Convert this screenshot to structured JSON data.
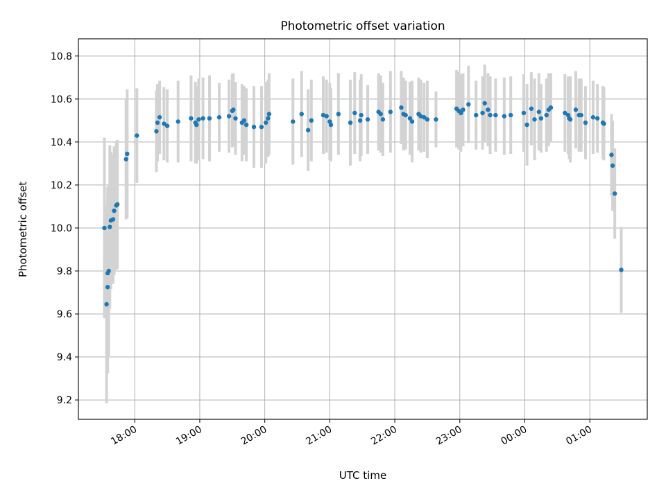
{
  "chart_data": {
    "type": "scatter",
    "title": "Photometric offset variation",
    "xlabel": "UTC time",
    "ylabel": "Photometric offset",
    "x_axis": {
      "kind": "time",
      "start": "17:00",
      "end": "02:00",
      "ticks": [
        "18:00",
        "19:00",
        "20:00",
        "21:00",
        "22:00",
        "23:00",
        "00:00",
        "01:00"
      ],
      "xlim": [
        "17:08",
        "01:53"
      ]
    },
    "ylim": [
      9.11,
      10.88
    ],
    "yticks": [
      9.2,
      9.4,
      9.6,
      9.8,
      10.0,
      10.2,
      10.4,
      10.6,
      10.8
    ],
    "grid": true,
    "colors": {
      "points": "#1f77b4",
      "errorbars": "#d3d3d3",
      "grid": "#b0b0b0"
    },
    "series": [
      {
        "marker": "dot",
        "error_bars": true,
        "points": [
          {
            "t": "17:32",
            "y": 10.0,
            "err": 0.42
          },
          {
            "t": "17:34",
            "y": 9.645,
            "err": 0.46
          },
          {
            "t": "17:35",
            "y": 9.725,
            "err": 0.4
          },
          {
            "t": "17:35",
            "y": 9.79,
            "err": 0.4
          },
          {
            "t": "17:36",
            "y": 9.8,
            "err": 0.4
          },
          {
            "t": "17:37",
            "y": 10.005,
            "err": 0.38
          },
          {
            "t": "17:38",
            "y": 10.035,
            "err": 0.32
          },
          {
            "t": "17:40",
            "y": 10.04,
            "err": 0.3
          },
          {
            "t": "17:41",
            "y": 10.08,
            "err": 0.3
          },
          {
            "t": "17:43",
            "y": 10.105,
            "err": 0.3
          },
          {
            "t": "17:44",
            "y": 10.11,
            "err": 0.3
          },
          {
            "t": "17:52",
            "y": 10.32,
            "err": 0.28
          },
          {
            "t": "17:53",
            "y": 10.345,
            "err": 0.3
          },
          {
            "t": "18:02",
            "y": 10.43,
            "err": 0.22
          },
          {
            "t": "18:20",
            "y": 10.45,
            "err": 0.19
          },
          {
            "t": "18:21",
            "y": 10.49,
            "err": 0.18
          },
          {
            "t": "18:23",
            "y": 10.515,
            "err": 0.17
          },
          {
            "t": "18:27",
            "y": 10.485,
            "err": 0.17
          },
          {
            "t": "18:30",
            "y": 10.475,
            "err": 0.17
          },
          {
            "t": "18:40",
            "y": 10.495,
            "err": 0.19
          },
          {
            "t": "18:52",
            "y": 10.51,
            "err": 0.2
          },
          {
            "t": "18:56",
            "y": 10.49,
            "err": 0.19
          },
          {
            "t": "18:57",
            "y": 10.48,
            "err": 0.18
          },
          {
            "t": "18:59",
            "y": 10.505,
            "err": 0.19
          },
          {
            "t": "19:03",
            "y": 10.51,
            "err": 0.19
          },
          {
            "t": "19:09",
            "y": 10.51,
            "err": 0.2
          },
          {
            "t": "19:18",
            "y": 10.515,
            "err": 0.16
          },
          {
            "t": "19:27",
            "y": 10.52,
            "err": 0.17
          },
          {
            "t": "19:30",
            "y": 10.545,
            "err": 0.17
          },
          {
            "t": "19:31",
            "y": 10.55,
            "err": 0.17
          },
          {
            "t": "19:33",
            "y": 10.51,
            "err": 0.17
          },
          {
            "t": "19:39",
            "y": 10.49,
            "err": 0.18
          },
          {
            "t": "19:41",
            "y": 10.5,
            "err": 0.16
          },
          {
            "t": "19:43",
            "y": 10.48,
            "err": 0.17
          },
          {
            "t": "19:50",
            "y": 10.47,
            "err": 0.19
          },
          {
            "t": "19:57",
            "y": 10.47,
            "err": 0.19
          },
          {
            "t": "20:01",
            "y": 10.49,
            "err": 0.19
          },
          {
            "t": "20:03",
            "y": 10.51,
            "err": 0.18
          },
          {
            "t": "20:04",
            "y": 10.53,
            "err": 0.19
          },
          {
            "t": "20:26",
            "y": 10.495,
            "err": 0.2
          },
          {
            "t": "20:34",
            "y": 10.53,
            "err": 0.2
          },
          {
            "t": "20:40",
            "y": 10.455,
            "err": 0.19
          },
          {
            "t": "20:43",
            "y": 10.5,
            "err": 0.19
          },
          {
            "t": "20:54",
            "y": 10.525,
            "err": 0.18
          },
          {
            "t": "20:57",
            "y": 10.52,
            "err": 0.17
          },
          {
            "t": "21:00",
            "y": 10.495,
            "err": 0.18
          },
          {
            "t": "21:01",
            "y": 10.48,
            "err": 0.17
          },
          {
            "t": "21:08",
            "y": 10.53,
            "err": 0.19
          },
          {
            "t": "21:19",
            "y": 10.49,
            "err": 0.2
          },
          {
            "t": "21:23",
            "y": 10.535,
            "err": 0.19
          },
          {
            "t": "21:28",
            "y": 10.5,
            "err": 0.19
          },
          {
            "t": "21:29",
            "y": 10.525,
            "err": 0.19
          },
          {
            "t": "21:35",
            "y": 10.505,
            "err": 0.16
          },
          {
            "t": "21:45",
            "y": 10.54,
            "err": 0.18
          },
          {
            "t": "21:47",
            "y": 10.53,
            "err": 0.18
          },
          {
            "t": "21:49",
            "y": 10.505,
            "err": 0.17
          },
          {
            "t": "21:56",
            "y": 10.54,
            "err": 0.19
          },
          {
            "t": "22:06",
            "y": 10.56,
            "err": 0.17
          },
          {
            "t": "22:08",
            "y": 10.53,
            "err": 0.17
          },
          {
            "t": "22:10",
            "y": 10.525,
            "err": 0.16
          },
          {
            "t": "22:14",
            "y": 10.51,
            "err": 0.17
          },
          {
            "t": "22:16",
            "y": 10.495,
            "err": 0.19
          },
          {
            "t": "22:22",
            "y": 10.53,
            "err": 0.17
          },
          {
            "t": "22:24",
            "y": 10.52,
            "err": 0.17
          },
          {
            "t": "22:27",
            "y": 10.515,
            "err": 0.16
          },
          {
            "t": "22:30",
            "y": 10.505,
            "err": 0.18
          },
          {
            "t": "22:38",
            "y": 10.505,
            "err": 0.13
          },
          {
            "t": "22:57",
            "y": 10.555,
            "err": 0.18
          },
          {
            "t": "22:59",
            "y": 10.545,
            "err": 0.18
          },
          {
            "t": "23:01",
            "y": 10.535,
            "err": 0.18
          },
          {
            "t": "23:03",
            "y": 10.55,
            "err": 0.17
          },
          {
            "t": "23:08",
            "y": 10.575,
            "err": 0.18
          },
          {
            "t": "23:15",
            "y": 10.525,
            "err": 0.16
          },
          {
            "t": "23:21",
            "y": 10.535,
            "err": 0.17
          },
          {
            "t": "23:23",
            "y": 10.58,
            "err": 0.18
          },
          {
            "t": "23:26",
            "y": 10.55,
            "err": 0.17
          },
          {
            "t": "23:28",
            "y": 10.525,
            "err": 0.18
          },
          {
            "t": "23:33",
            "y": 10.525,
            "err": 0.17
          },
          {
            "t": "23:41",
            "y": 10.52,
            "err": 0.18
          },
          {
            "t": "23:47",
            "y": 10.525,
            "err": 0.18
          },
          {
            "t": "23:59",
            "y": 10.535,
            "err": 0.18
          },
          {
            "t": "00:02",
            "y": 10.48,
            "err": 0.19
          },
          {
            "t": "00:06",
            "y": 10.555,
            "err": 0.17
          },
          {
            "t": "00:09",
            "y": 10.505,
            "err": 0.19
          },
          {
            "t": "00:13",
            "y": 10.54,
            "err": 0.18
          },
          {
            "t": "00:15",
            "y": 10.51,
            "err": 0.16
          },
          {
            "t": "00:20",
            "y": 10.525,
            "err": 0.17
          },
          {
            "t": "00:22",
            "y": 10.55,
            "err": 0.17
          },
          {
            "t": "00:24",
            "y": 10.56,
            "err": 0.16
          },
          {
            "t": "00:37",
            "y": 10.535,
            "err": 0.18
          },
          {
            "t": "00:40",
            "y": 10.525,
            "err": 0.18
          },
          {
            "t": "00:41",
            "y": 10.51,
            "err": 0.19
          },
          {
            "t": "00:42",
            "y": 10.505,
            "err": 0.2
          },
          {
            "t": "00:47",
            "y": 10.55,
            "err": 0.18
          },
          {
            "t": "00:50",
            "y": 10.525,
            "err": 0.17
          },
          {
            "t": "00:52",
            "y": 10.525,
            "err": 0.17
          },
          {
            "t": "00:56",
            "y": 10.49,
            "err": 0.17
          },
          {
            "t": "01:03",
            "y": 10.515,
            "err": 0.17
          },
          {
            "t": "01:07",
            "y": 10.51,
            "err": 0.16
          },
          {
            "t": "01:12",
            "y": 10.49,
            "err": 0.17
          },
          {
            "t": "01:13",
            "y": 10.485,
            "err": 0.17
          },
          {
            "t": "01:20",
            "y": 10.34,
            "err": 0.19
          },
          {
            "t": "01:21",
            "y": 10.29,
            "err": 0.21
          },
          {
            "t": "01:23",
            "y": 10.16,
            "err": 0.21
          },
          {
            "t": "01:29",
            "y": 9.805,
            "err": 0.2
          }
        ]
      }
    ]
  }
}
